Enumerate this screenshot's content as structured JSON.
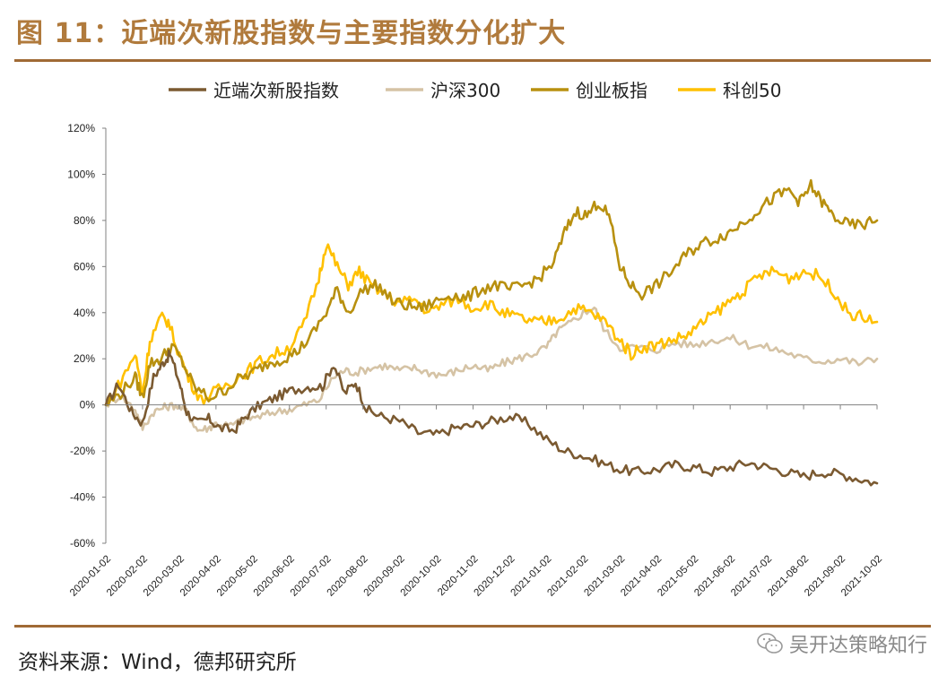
{
  "header": {
    "title": "图 11：近端次新股指数与主要指数分化扩大"
  },
  "footer": {
    "source": "资料来源：Wind，德邦研究所",
    "watermark": "吴开达策略知行",
    "watermark_icon": "wechat-icon"
  },
  "colors": {
    "s1": "#7B5A31",
    "s2": "#D5C3A5",
    "s3": "#B8900F",
    "s4": "#FFC000",
    "accent": "#B07A3C"
  },
  "chart_data": {
    "type": "line",
    "title": "近端次新股指数与主要指数分化扩大",
    "x": [
      "2020-01-02",
      "2020-02-02",
      "2020-03-02",
      "2020-04-02",
      "2020-05-02",
      "2020-06-02",
      "2020-07-02",
      "2020-08-02",
      "2020-09-02",
      "2020-10-02",
      "2020-11-02",
      "2020-12-02",
      "2021-01-02",
      "2021-02-02",
      "2021-03-02",
      "2021-04-02",
      "2021-05-02",
      "2021-06-02",
      "2021-07-02",
      "2021-08-02",
      "2021-09-02",
      "2021-10-02"
    ],
    "yticks": [
      "120%",
      "100%",
      "80%",
      "60%",
      "40%",
      "20%",
      "0%",
      "-20%",
      "-40%",
      "-60%"
    ],
    "ylim": [
      -60,
      120
    ],
    "ylabel": "",
    "xlabel": "",
    "legend_position": "top",
    "series": [
      {
        "name": "近端次新股指数",
        "points": [
          [
            0,
            0
          ],
          [
            0.35,
            9
          ],
          [
            0.7,
            -3
          ],
          [
            1.0,
            -8
          ],
          [
            1.3,
            12
          ],
          [
            1.55,
            18
          ],
          [
            1.75,
            22
          ],
          [
            2.0,
            10
          ],
          [
            2.2,
            -3
          ],
          [
            2.5,
            -8
          ],
          [
            2.8,
            -6
          ],
          [
            3.1,
            -10
          ],
          [
            3.5,
            -11
          ],
          [
            3.8,
            -5
          ],
          [
            4.2,
            0
          ],
          [
            4.6,
            3
          ],
          [
            5.0,
            6
          ],
          [
            5.5,
            8
          ],
          [
            5.9,
            8
          ],
          [
            6.2,
            18
          ],
          [
            6.5,
            5
          ],
          [
            6.8,
            10
          ],
          [
            7.1,
            -2
          ],
          [
            7.5,
            -5
          ],
          [
            8.0,
            -7
          ],
          [
            8.5,
            -12
          ],
          [
            9.0,
            -13
          ],
          [
            9.5,
            -10
          ],
          [
            10.0,
            -9
          ],
          [
            10.5,
            -7
          ],
          [
            11.0,
            -5
          ],
          [
            11.5,
            -8
          ],
          [
            12.0,
            -15
          ],
          [
            12.5,
            -20
          ],
          [
            13.0,
            -22
          ],
          [
            13.5,
            -25
          ],
          [
            14.0,
            -28
          ],
          [
            14.5,
            -29
          ],
          [
            15.0,
            -28
          ],
          [
            15.5,
            -26
          ],
          [
            16.0,
            -27
          ],
          [
            16.5,
            -29
          ],
          [
            17.0,
            -27
          ],
          [
            17.5,
            -25
          ],
          [
            18.0,
            -27
          ],
          [
            18.5,
            -29
          ],
          [
            19.0,
            -31
          ],
          [
            19.5,
            -29
          ],
          [
            20.0,
            -30
          ],
          [
            20.5,
            -32
          ],
          [
            21.0,
            -34
          ]
        ]
      },
      {
        "name": "沪深300",
        "points": [
          [
            0,
            0
          ],
          [
            0.4,
            4
          ],
          [
            0.8,
            -2
          ],
          [
            1.0,
            -10
          ],
          [
            1.3,
            -3
          ],
          [
            1.6,
            -1
          ],
          [
            1.9,
            0
          ],
          [
            2.2,
            -3
          ],
          [
            2.5,
            -11
          ],
          [
            2.8,
            -10
          ],
          [
            3.0,
            -8
          ],
          [
            3.4,
            -9
          ],
          [
            3.8,
            -6
          ],
          [
            4.2,
            -5
          ],
          [
            4.6,
            -3
          ],
          [
            5.0,
            -2
          ],
          [
            5.4,
            0
          ],
          [
            5.8,
            2
          ],
          [
            6.2,
            12
          ],
          [
            6.5,
            15
          ],
          [
            6.8,
            14
          ],
          [
            7.2,
            16
          ],
          [
            7.6,
            17
          ],
          [
            8.0,
            15
          ],
          [
            8.4,
            16
          ],
          [
            8.8,
            14
          ],
          [
            9.2,
            13
          ],
          [
            9.6,
            15
          ],
          [
            10.0,
            17
          ],
          [
            10.4,
            15
          ],
          [
            10.8,
            18
          ],
          [
            11.2,
            20
          ],
          [
            11.6,
            22
          ],
          [
            12.0,
            25
          ],
          [
            12.3,
            32
          ],
          [
            12.6,
            35
          ],
          [
            13.0,
            40
          ],
          [
            13.3,
            42
          ],
          [
            13.6,
            32
          ],
          [
            14.0,
            25
          ],
          [
            14.5,
            25
          ],
          [
            15.0,
            24
          ],
          [
            15.5,
            27
          ],
          [
            16.0,
            26
          ],
          [
            16.5,
            28
          ],
          [
            17.0,
            29
          ],
          [
            17.5,
            26
          ],
          [
            18.0,
            25
          ],
          [
            18.5,
            23
          ],
          [
            19.0,
            20
          ],
          [
            19.5,
            19
          ],
          [
            20.0,
            20
          ],
          [
            20.5,
            18
          ],
          [
            21.0,
            20
          ]
        ]
      },
      {
        "name": "创业板指",
        "points": [
          [
            0,
            0
          ],
          [
            0.4,
            5
          ],
          [
            0.8,
            12
          ],
          [
            1.0,
            3
          ],
          [
            1.2,
            18
          ],
          [
            1.5,
            20
          ],
          [
            1.8,
            26
          ],
          [
            2.1,
            18
          ],
          [
            2.4,
            8
          ],
          [
            2.8,
            3
          ],
          [
            3.2,
            6
          ],
          [
            3.6,
            11
          ],
          [
            4.0,
            14
          ],
          [
            4.4,
            18
          ],
          [
            4.8,
            20
          ],
          [
            5.2,
            23
          ],
          [
            5.6,
            30
          ],
          [
            6.0,
            40
          ],
          [
            6.3,
            50
          ],
          [
            6.6,
            40
          ],
          [
            7.0,
            50
          ],
          [
            7.4,
            52
          ],
          [
            7.8,
            45
          ],
          [
            8.2,
            43
          ],
          [
            8.6,
            42
          ],
          [
            9.0,
            45
          ],
          [
            9.4,
            48
          ],
          [
            9.8,
            46
          ],
          [
            10.2,
            50
          ],
          [
            10.6,
            52
          ],
          [
            11.0,
            50
          ],
          [
            11.4,
            52
          ],
          [
            11.8,
            55
          ],
          [
            12.2,
            62
          ],
          [
            12.5,
            75
          ],
          [
            12.8,
            84
          ],
          [
            13.1,
            82
          ],
          [
            13.4,
            88
          ],
          [
            13.7,
            82
          ],
          [
            14.0,
            60
          ],
          [
            14.3,
            52
          ],
          [
            14.6,
            48
          ],
          [
            15.0,
            52
          ],
          [
            15.4,
            58
          ],
          [
            15.8,
            65
          ],
          [
            16.2,
            70
          ],
          [
            16.6,
            72
          ],
          [
            17.0,
            75
          ],
          [
            17.4,
            80
          ],
          [
            17.8,
            85
          ],
          [
            18.2,
            90
          ],
          [
            18.6,
            93
          ],
          [
            18.9,
            88
          ],
          [
            19.2,
            95
          ],
          [
            19.5,
            88
          ],
          [
            19.8,
            82
          ],
          [
            20.2,
            78
          ],
          [
            20.6,
            78
          ],
          [
            21.0,
            80
          ]
        ]
      },
      {
        "name": "科创50",
        "points": [
          [
            0,
            0
          ],
          [
            0.4,
            10
          ],
          [
            0.8,
            22
          ],
          [
            1.0,
            5
          ],
          [
            1.2,
            28
          ],
          [
            1.5,
            38
          ],
          [
            1.7,
            36
          ],
          [
            2.0,
            22
          ],
          [
            2.3,
            10
          ],
          [
            2.6,
            2
          ],
          [
            3.0,
            6
          ],
          [
            3.4,
            10
          ],
          [
            3.8,
            14
          ],
          [
            4.2,
            19
          ],
          [
            4.6,
            22
          ],
          [
            5.0,
            25
          ],
          [
            5.4,
            35
          ],
          [
            5.8,
            55
          ],
          [
            6.0,
            70
          ],
          [
            6.3,
            60
          ],
          [
            6.6,
            52
          ],
          [
            6.9,
            58
          ],
          [
            7.2,
            52
          ],
          [
            7.6,
            48
          ],
          [
            8.0,
            44
          ],
          [
            8.4,
            46
          ],
          [
            8.8,
            40
          ],
          [
            9.2,
            44
          ],
          [
            9.6,
            46
          ],
          [
            10.0,
            42
          ],
          [
            10.4,
            44
          ],
          [
            10.8,
            40
          ],
          [
            11.2,
            38
          ],
          [
            11.6,
            36
          ],
          [
            12.0,
            36
          ],
          [
            12.4,
            38
          ],
          [
            12.8,
            42
          ],
          [
            13.2,
            40
          ],
          [
            13.6,
            36
          ],
          [
            14.0,
            28
          ],
          [
            14.3,
            22
          ],
          [
            14.6,
            25
          ],
          [
            15.0,
            26
          ],
          [
            15.4,
            28
          ],
          [
            15.8,
            30
          ],
          [
            16.2,
            35
          ],
          [
            16.6,
            40
          ],
          [
            17.0,
            45
          ],
          [
            17.4,
            50
          ],
          [
            17.8,
            56
          ],
          [
            18.2,
            58
          ],
          [
            18.6,
            55
          ],
          [
            19.0,
            58
          ],
          [
            19.4,
            56
          ],
          [
            19.8,
            50
          ],
          [
            20.2,
            40
          ],
          [
            20.6,
            38
          ],
          [
            21.0,
            36
          ]
        ]
      }
    ]
  }
}
